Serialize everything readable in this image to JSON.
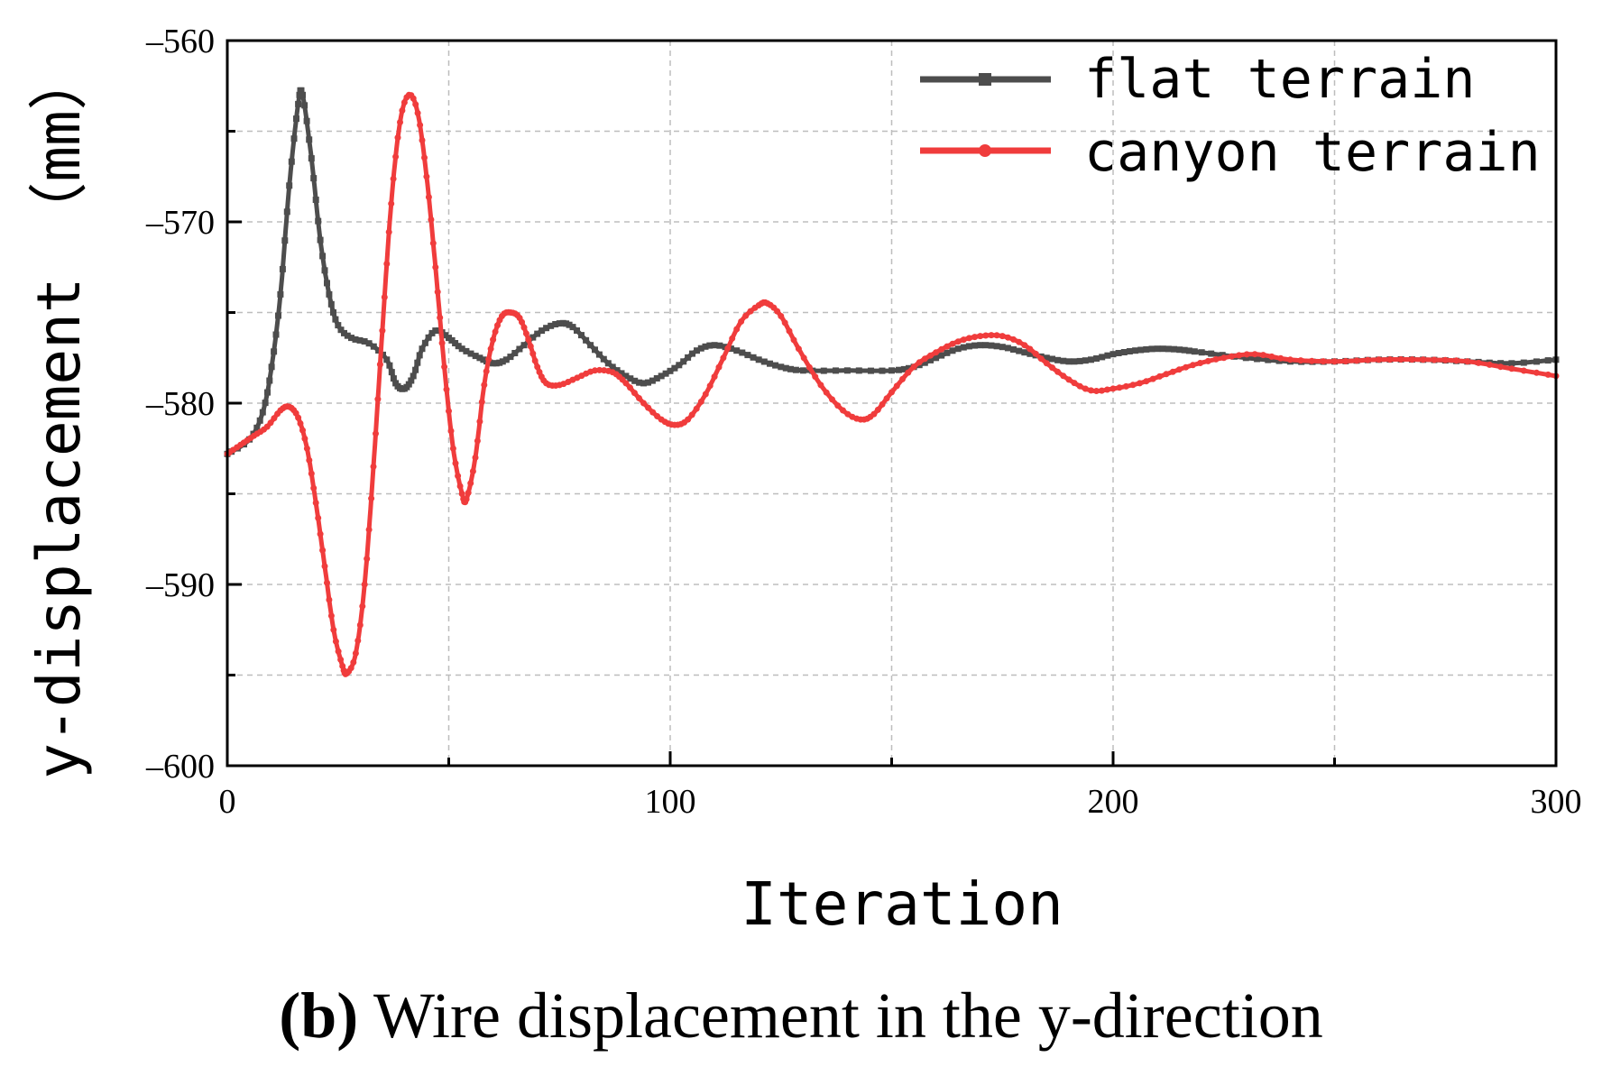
{
  "chart_data": {
    "type": "line",
    "xlabel": "Iteration",
    "ylabel": "y-displacement （mm）",
    "xlim": [
      0,
      300
    ],
    "ylim": [
      -600,
      -560
    ],
    "xticks": [
      0,
      100,
      200,
      300
    ],
    "xtick_labels": [
      "0",
      "100",
      "200",
      "300"
    ],
    "yticks": [
      -560,
      -570,
      -580,
      -590,
      -600
    ],
    "ytick_labels": [
      "-560",
      "-570",
      "-580",
      "-590",
      "-600"
    ],
    "grid": true,
    "legend_position": "top-right",
    "series": [
      {
        "name": "flat terrain",
        "color": "#4d4d4d",
        "marker": "square",
        "points": [
          [
            0,
            -582.8
          ],
          [
            5,
            -582
          ],
          [
            8,
            -580.5
          ],
          [
            10,
            -578
          ],
          [
            12,
            -574
          ],
          [
            14,
            -568
          ],
          [
            16,
            -563.5
          ],
          [
            17,
            -563
          ],
          [
            19,
            -566.5
          ],
          [
            21,
            -571
          ],
          [
            23,
            -574
          ],
          [
            25,
            -575.7
          ],
          [
            28,
            -576.4
          ],
          [
            32,
            -576.7
          ],
          [
            36,
            -577.6
          ],
          [
            38,
            -578.9
          ],
          [
            40,
            -579.2
          ],
          [
            42,
            -578.5
          ],
          [
            44,
            -577
          ],
          [
            47,
            -576
          ],
          [
            50,
            -576.4
          ],
          [
            53,
            -577
          ],
          [
            57,
            -577.5
          ],
          [
            60,
            -577.8
          ],
          [
            63,
            -577.6
          ],
          [
            67,
            -576.8
          ],
          [
            71,
            -576
          ],
          [
            75,
            -575.6
          ],
          [
            78,
            -575.8
          ],
          [
            82,
            -576.8
          ],
          [
            86,
            -577.8
          ],
          [
            90,
            -578.5
          ],
          [
            94,
            -578.9
          ],
          [
            98,
            -578.5
          ],
          [
            102,
            -577.9
          ],
          [
            106,
            -577.1
          ],
          [
            110,
            -576.8
          ],
          [
            115,
            -577.1
          ],
          [
            120,
            -577.6
          ],
          [
            125,
            -578
          ],
          [
            130,
            -578.2
          ],
          [
            140,
            -578.2
          ],
          [
            150,
            -578.2
          ],
          [
            155,
            -578
          ],
          [
            160,
            -577.5
          ],
          [
            165,
            -577
          ],
          [
            170,
            -576.8
          ],
          [
            175,
            -576.9
          ],
          [
            180,
            -577.2
          ],
          [
            185,
            -577.5
          ],
          [
            190,
            -577.7
          ],
          [
            195,
            -577.6
          ],
          [
            200,
            -577.3
          ],
          [
            205,
            -577.1
          ],
          [
            210,
            -577
          ],
          [
            215,
            -577.05
          ],
          [
            220,
            -577.2
          ],
          [
            230,
            -577.5
          ],
          [
            240,
            -577.7
          ],
          [
            250,
            -577.7
          ],
          [
            260,
            -577.6
          ],
          [
            270,
            -577.6
          ],
          [
            280,
            -577.7
          ],
          [
            290,
            -577.8
          ],
          [
            300,
            -577.6
          ]
        ]
      },
      {
        "name": "canyon terrain",
        "color": "#f03c3c",
        "marker": "circle",
        "points": [
          [
            0,
            -582.8
          ],
          [
            3,
            -582.3
          ],
          [
            6,
            -581.8
          ],
          [
            9,
            -581.3
          ],
          [
            12,
            -580.4
          ],
          [
            14,
            -580.2
          ],
          [
            16,
            -580.8
          ],
          [
            18,
            -582.5
          ],
          [
            20,
            -585.5
          ],
          [
            22,
            -589
          ],
          [
            24,
            -592.5
          ],
          [
            26,
            -594.5
          ],
          [
            27,
            -594.9
          ],
          [
            29,
            -593.8
          ],
          [
            31,
            -590
          ],
          [
            33,
            -583.5
          ],
          [
            35,
            -576
          ],
          [
            37,
            -569
          ],
          [
            39,
            -564.5
          ],
          [
            41,
            -563
          ],
          [
            43,
            -564
          ],
          [
            45,
            -567.5
          ],
          [
            47,
            -572.5
          ],
          [
            49,
            -578
          ],
          [
            51,
            -582.5
          ],
          [
            53,
            -585
          ],
          [
            54,
            -585.3
          ],
          [
            56,
            -583
          ],
          [
            58,
            -579
          ],
          [
            60,
            -576.5
          ],
          [
            62,
            -575.2
          ],
          [
            64,
            -575
          ],
          [
            66,
            -575.3
          ],
          [
            68,
            -576.5
          ],
          [
            70,
            -578
          ],
          [
            72,
            -578.9
          ],
          [
            75,
            -579
          ],
          [
            79,
            -578.6
          ],
          [
            83,
            -578.2
          ],
          [
            87,
            -578.3
          ],
          [
            90,
            -578.9
          ],
          [
            94,
            -580
          ],
          [
            98,
            -580.9
          ],
          [
            101,
            -581.2
          ],
          [
            104,
            -580.9
          ],
          [
            108,
            -579.5
          ],
          [
            112,
            -577.5
          ],
          [
            116,
            -575.5
          ],
          [
            120,
            -574.6
          ],
          [
            122,
            -574.5
          ],
          [
            125,
            -575.2
          ],
          [
            129,
            -577
          ],
          [
            134,
            -579
          ],
          [
            139,
            -580.4
          ],
          [
            143,
            -580.9
          ],
          [
            146,
            -580.6
          ],
          [
            150,
            -579.4
          ],
          [
            155,
            -578
          ],
          [
            160,
            -577.2
          ],
          [
            165,
            -576.6
          ],
          [
            170,
            -576.3
          ],
          [
            175,
            -576.3
          ],
          [
            180,
            -576.8
          ],
          [
            185,
            -577.8
          ],
          [
            190,
            -578.7
          ],
          [
            195,
            -579.3
          ],
          [
            200,
            -579.2
          ],
          [
            206,
            -578.9
          ],
          [
            212,
            -578.4
          ],
          [
            218,
            -577.9
          ],
          [
            225,
            -577.5
          ],
          [
            232,
            -577.3
          ],
          [
            240,
            -577.6
          ],
          [
            250,
            -577.7
          ],
          [
            260,
            -577.6
          ],
          [
            270,
            -577.6
          ],
          [
            280,
            -577.7
          ],
          [
            290,
            -578.1
          ],
          [
            300,
            -578.5
          ]
        ]
      }
    ]
  },
  "caption": {
    "label": "(b)",
    "text": " Wire displacement in the y-direction"
  }
}
